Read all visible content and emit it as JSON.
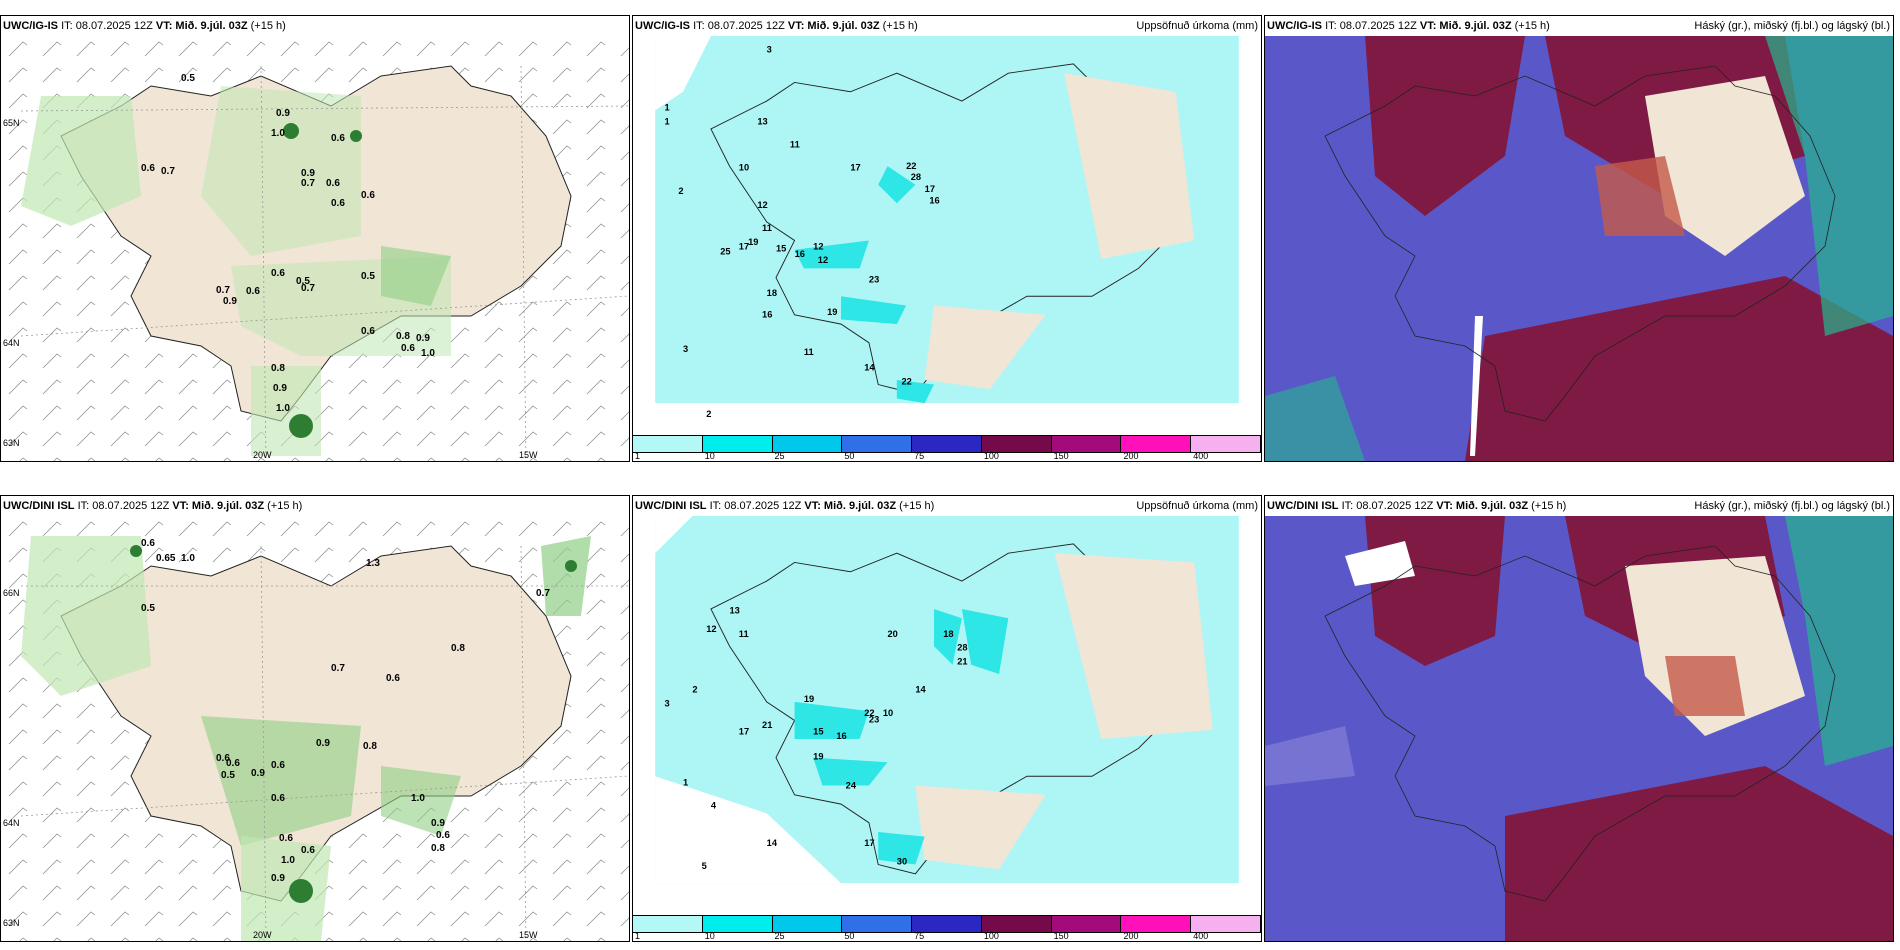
{
  "colors": {
    "land": "#f1e5d5",
    "green_light": "#bfe8b4",
    "green_mid": "#8fcf86",
    "green_dark": "#2d7d32",
    "cyan": "#aef6f6",
    "cyan_mid": "#2ee6e6",
    "cloud_blue": "#5a58c9",
    "cloud_maroon": "#7f1a45",
    "cloud_red": "#c45a4a",
    "cloud_teal": "#25b78e"
  },
  "panels": {
    "p1": {
      "model": "UWC/IG-IS",
      "it": "IT: 08.07.2025 12Z",
      "vt": "VT: Mið. 9.júl. 03Z",
      "step": "(+15 h)",
      "right": "",
      "lat_left": [
        "65N",
        "64N",
        "63N"
      ],
      "lon_bottom": [
        "20W",
        "15W"
      ],
      "values": [
        "0.5",
        "0.9",
        "1.0",
        "0.6",
        "0.6",
        "0.7",
        "0.9",
        "0.7",
        "0.6",
        "0.6",
        "0.6",
        "0.6",
        "0.5",
        "0.7",
        "0.9",
        "0.6",
        "0.5",
        "0.7",
        "0.6",
        "0.8",
        "0.9",
        "0.6",
        "1.0",
        "0.8",
        "0.9",
        "1.0"
      ]
    },
    "p2": {
      "model": "UWC/IG-IS",
      "it": "IT: 08.07.2025 12Z",
      "vt": "VT: Mið. 9.júl. 03Z",
      "step": "(+15 h)",
      "right": "Uppsöfnuð úrkoma (mm)",
      "values": [
        "3",
        "1",
        "1",
        "2",
        "17",
        "22",
        "28",
        "17",
        "16",
        "12",
        "19",
        "15",
        "16",
        "12",
        "25",
        "17",
        "23",
        "18",
        "16",
        "19",
        "14",
        "22",
        "11",
        "3",
        "2",
        "11",
        "12",
        "10",
        "13",
        "11"
      ]
    },
    "p3": {
      "model": "UWC/IG-IS",
      "it": "IT: 08.07.2025 12Z",
      "vt": "VT: Mið. 9.júl. 03Z",
      "step": "(+15 h)",
      "right": "Háský (gr.), miðský (fj.bl.) og lágský (bl.)"
    },
    "p4": {
      "model": "UWC/DINI ISL",
      "it": "IT: 08.07.2025 12Z",
      "vt": "VT: Mið. 9.júl. 03Z",
      "step": "(+15 h)",
      "right": "",
      "lat_left": [
        "66N",
        "64N",
        "63N"
      ],
      "lon_bottom": [
        "20W",
        "15W"
      ],
      "values": [
        "0.6",
        "0.65",
        "1.0",
        "1.3",
        "0.7",
        "0.5",
        "0.6",
        "0.8",
        "0.7",
        "0.6",
        "0.6",
        "0.5",
        "0.9",
        "0.6",
        "0.9",
        "0.8",
        "0.6",
        "1.0",
        "0.9",
        "0.6",
        "0.8",
        "0.6",
        "1.0",
        "0.9",
        "0.6"
      ]
    },
    "p5": {
      "model": "UWC/DINI ISL",
      "it": "IT: 08.07.2025 12Z",
      "vt": "VT: Mið. 9.júl. 03Z",
      "step": "(+15 h)",
      "right": "Uppsöfnuð úrkoma (mm)",
      "values": [
        "20",
        "18",
        "28",
        "21",
        "14",
        "19",
        "17",
        "21",
        "15",
        "19",
        "24",
        "14",
        "17",
        "30",
        "12",
        "13",
        "11",
        "22",
        "23",
        "16",
        "10",
        "5",
        "4",
        "3",
        "2",
        "1"
      ]
    },
    "p6": {
      "model": "UWC/DINI ISL",
      "it": "IT: 08.07.2025 12Z",
      "vt": "VT: Mið. 9.júl. 03Z",
      "step": "(+15 h)",
      "right": "Háský (gr.), miðský (fj.bl.) og lágský (bl.)"
    }
  },
  "colorbar": {
    "ticks": [
      "1",
      "10",
      "25",
      "50",
      "75",
      "100",
      "150",
      "200",
      "400"
    ],
    "colors": [
      "#b3f7f7",
      "#00eded",
      "#00c8ea",
      "#2f6fe8",
      "#2a28c0",
      "#740a4a",
      "#a30a7a",
      "#ff10b8",
      "#f7b0ef"
    ]
  }
}
